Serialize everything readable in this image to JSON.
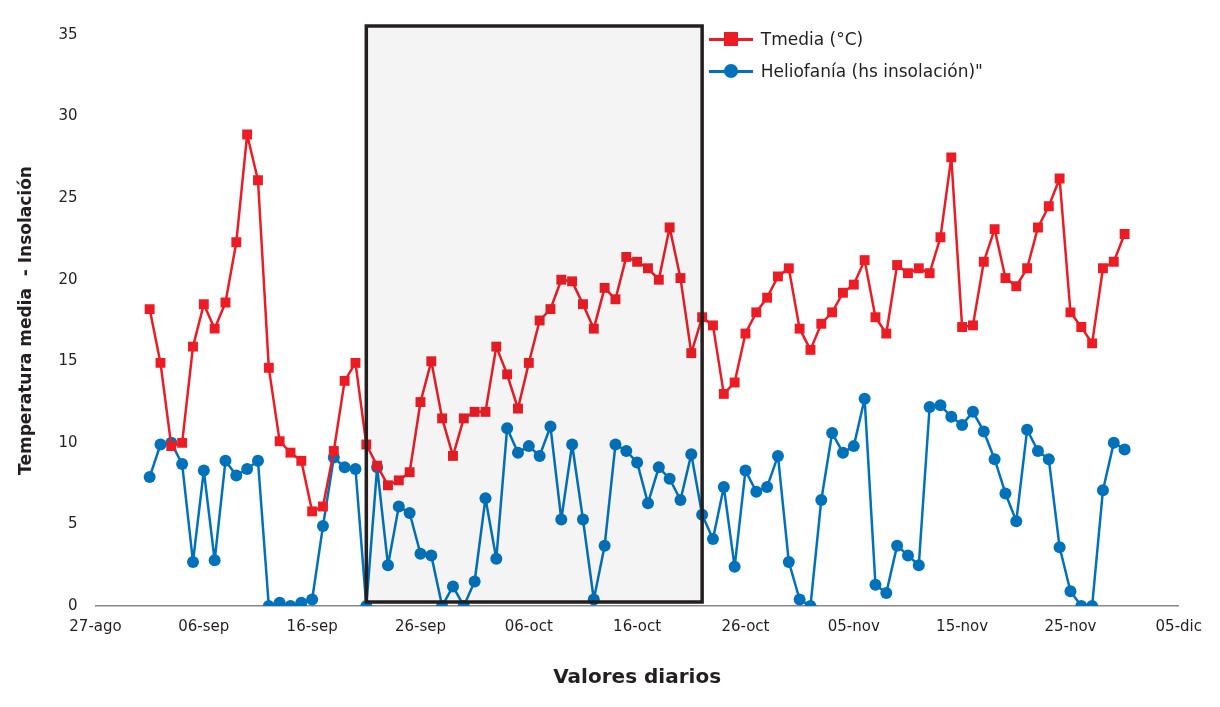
{
  "chart_data": {
    "type": "line",
    "xlabel": "Valores diarios",
    "ylabel": "Temperatura media  - Insolación",
    "x": [
      "--09-01",
      "--09-02",
      "--09-03",
      "--09-04",
      "--09-05",
      "--09-06",
      "--09-07",
      "--09-08",
      "--09-09",
      "--09-10",
      "--09-11",
      "--09-12",
      "--09-13",
      "--09-14",
      "--09-15",
      "--09-16",
      "--09-17",
      "--09-18",
      "--09-19",
      "--09-20",
      "--09-21",
      "--09-22",
      "--09-23",
      "--09-24",
      "--09-25",
      "--09-26",
      "--09-27",
      "--09-28",
      "--09-29",
      "--09-30",
      "--10-01",
      "--10-02",
      "--10-03",
      "--10-04",
      "--10-05",
      "--10-06",
      "--10-07",
      "--10-08",
      "--10-09",
      "--10-10",
      "--10-11",
      "--10-12",
      "--10-13",
      "--10-14",
      "--10-15",
      "--10-16",
      "--10-17",
      "--10-18",
      "--10-19",
      "--10-20",
      "--10-21",
      "--10-22",
      "--10-23",
      "--10-24",
      "--10-25",
      "--10-26",
      "--10-27",
      "--10-28",
      "--10-29",
      "--10-30",
      "--10-31",
      "--11-01",
      "--11-02",
      "--11-03",
      "--11-04",
      "--11-05",
      "--11-06",
      "--11-07",
      "--11-08",
      "--11-09",
      "--11-10",
      "--11-11",
      "--11-12",
      "--11-13",
      "--11-14",
      "--11-15",
      "--11-16",
      "--11-17",
      "--11-18",
      "--11-19",
      "--11-20",
      "--11-21",
      "--11-22",
      "--11-23",
      "--11-24",
      "--11-25",
      "--11-26",
      "--11-27",
      "--11-28",
      "--11-29",
      "--11-30"
    ],
    "series": [
      {
        "name": "Tmedia (°C)",
        "color": "#ed1c24",
        "marker": "square",
        "values": [
          18.2,
          14.9,
          9.8,
          10.0,
          15.9,
          18.5,
          17.0,
          18.6,
          22.3,
          28.9,
          26.1,
          14.6,
          10.1,
          9.4,
          8.9,
          5.8,
          6.1,
          9.5,
          13.8,
          14.9,
          9.9,
          8.6,
          7.4,
          7.7,
          8.2,
          12.5,
          15.0,
          11.5,
          9.2,
          11.5,
          11.9,
          11.9,
          15.9,
          14.2,
          12.1,
          14.9,
          17.5,
          18.2,
          20.0,
          19.9,
          18.5,
          17.0,
          19.5,
          18.8,
          21.4,
          21.1,
          20.7,
          20.0,
          23.2,
          20.1,
          15.5,
          17.7,
          17.2,
          13.0,
          13.7,
          16.7,
          18.0,
          18.9,
          20.2,
          20.7,
          17.0,
          15.7,
          17.3,
          18.0,
          19.2,
          19.7,
          21.2,
          17.7,
          16.7,
          20.9,
          20.4,
          20.7,
          20.4,
          22.6,
          27.5,
          17.1,
          17.2,
          21.1,
          23.1,
          20.1,
          19.6,
          20.7,
          23.2,
          24.5,
          26.2,
          18.0,
          17.1,
          16.1,
          20.7,
          21.1,
          22.8
        ]
      },
      {
        "name": "Heliofanía (hs insolación)\"",
        "color": "#0072bc",
        "marker": "circle",
        "values": [
          7.9,
          9.9,
          10.0,
          8.7,
          2.7,
          8.3,
          2.8,
          8.9,
          8.0,
          8.4,
          8.9,
          0.0,
          0.2,
          0.0,
          0.2,
          0.4,
          4.9,
          9.1,
          8.5,
          8.4,
          0.0,
          8.5,
          2.5,
          6.1,
          5.7,
          3.2,
          3.1,
          0.0,
          1.2,
          0.0,
          1.5,
          6.6,
          2.9,
          10.9,
          9.4,
          9.8,
          9.2,
          11.0,
          5.3,
          9.9,
          5.3,
          0.4,
          3.7,
          9.9,
          9.5,
          8.8,
          6.3,
          8.5,
          7.8,
          6.5,
          9.3,
          5.6,
          4.1,
          7.3,
          2.4,
          8.3,
          7.0,
          7.3,
          9.2,
          2.7,
          0.4,
          0.0,
          6.5,
          10.6,
          9.4,
          9.8,
          12.7,
          1.3,
          0.8,
          3.7,
          3.1,
          2.5,
          12.2,
          12.3,
          11.6,
          11.1,
          11.9,
          10.7,
          9.0,
          6.9,
          5.2,
          10.8,
          9.5,
          9.0,
          3.6,
          0.9,
          0.0,
          0.0,
          7.1,
          10.0,
          9.6
        ]
      }
    ],
    "xlim": [
      "--08-27",
      "--12-05"
    ],
    "xticks": [
      {
        "value": "--08-27",
        "label": "27-ago"
      },
      {
        "value": "--09-06",
        "label": "06-sep"
      },
      {
        "value": "--09-16",
        "label": "16-sep"
      },
      {
        "value": "--09-26",
        "label": "26-sep"
      },
      {
        "value": "--10-06",
        "label": "06-oct"
      },
      {
        "value": "--10-16",
        "label": "16-oct"
      },
      {
        "value": "--10-26",
        "label": "26-oct"
      },
      {
        "value": "--11-05",
        "label": "05-nov"
      },
      {
        "value": "--11-15",
        "label": "15-nov"
      },
      {
        "value": "--11-25",
        "label": "25-nov"
      },
      {
        "value": "--12-05",
        "label": "05-dic"
      }
    ],
    "ylim": [
      0,
      35
    ],
    "yticks": [
      0,
      5,
      10,
      15,
      20,
      25,
      30,
      35
    ],
    "bands": [
      {
        "axis": "x",
        "from": "--09-21",
        "to": "--10-22",
        "color": "#231f20"
      }
    ],
    "grid": false,
    "legend": "top right",
    "line_style": "solid"
  }
}
